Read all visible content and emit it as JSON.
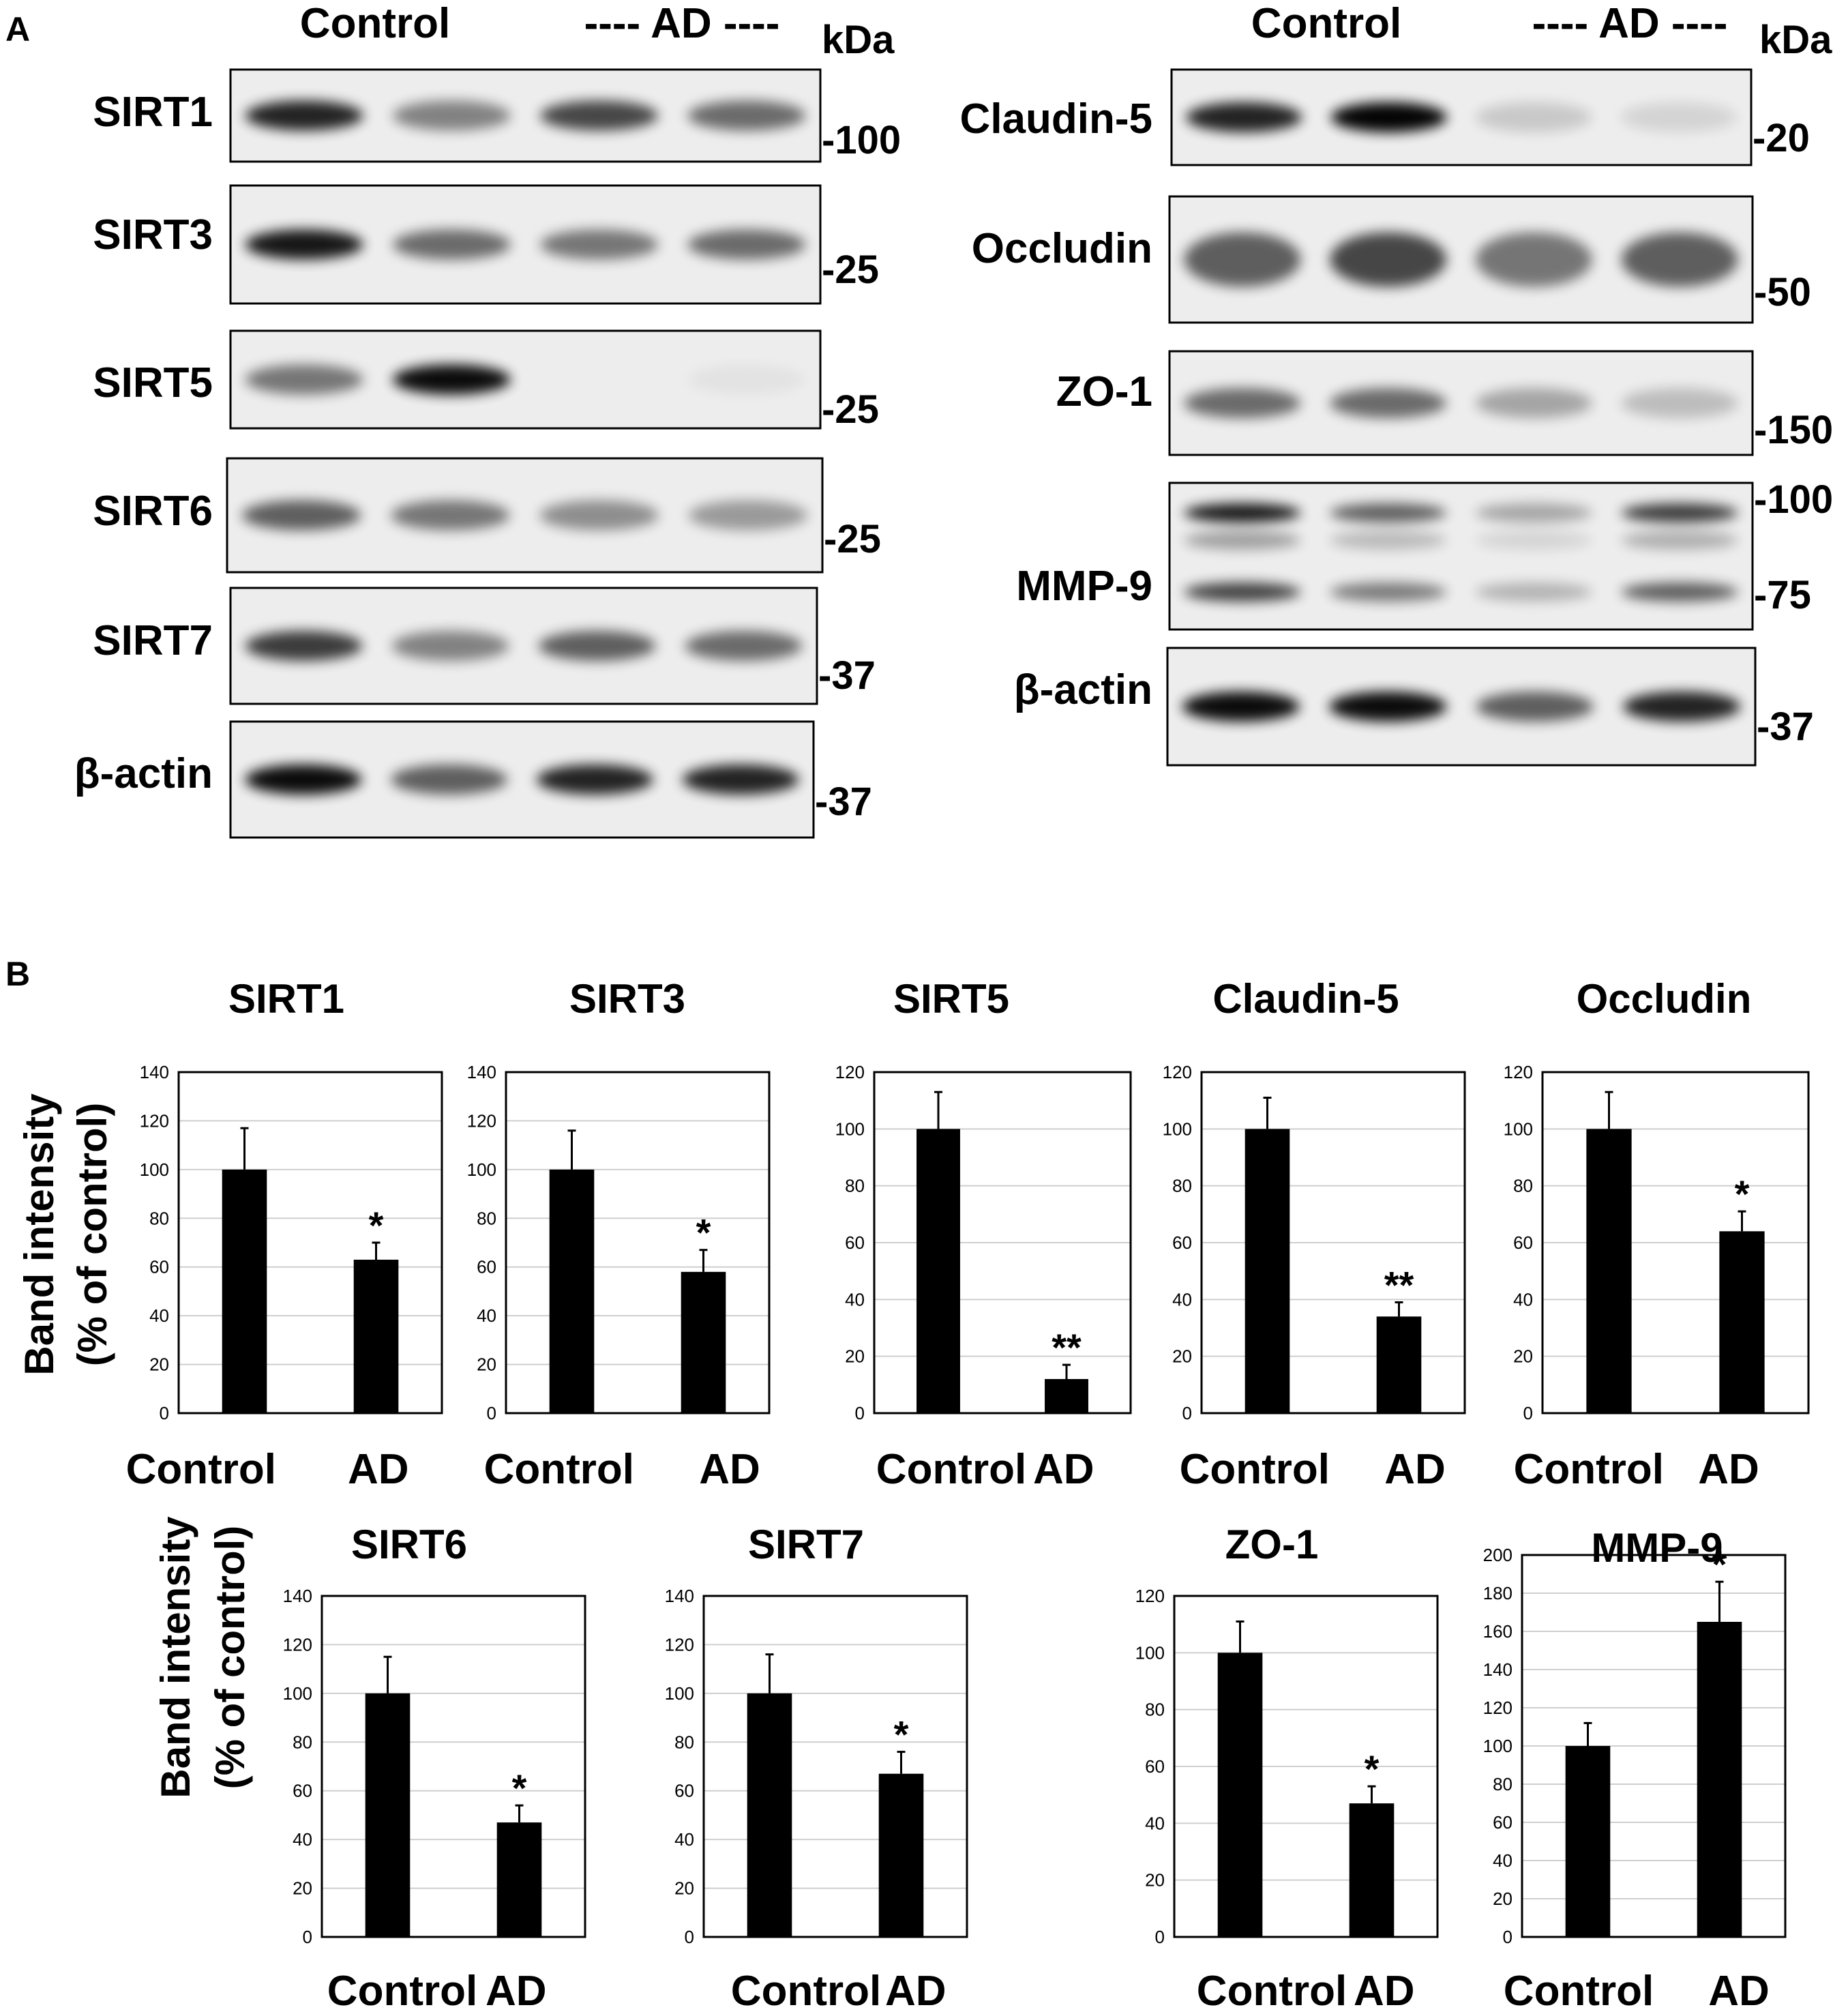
{
  "panel_a": {
    "label": "A",
    "left": {
      "header": {
        "control": "Control",
        "ad": "---- AD ----",
        "unit": "kDa"
      },
      "blots": [
        {
          "protein": "SIRT1",
          "marker": "-100",
          "bands": [
            0.85,
            0.45,
            0.7,
            0.55
          ]
        },
        {
          "protein": "SIRT3",
          "marker": "-25",
          "bands": [
            0.9,
            0.55,
            0.5,
            0.55
          ]
        },
        {
          "protein": "SIRT5",
          "marker": "-25",
          "bands": [
            0.5,
            0.95,
            0.0,
            0.04
          ]
        },
        {
          "protein": "SIRT6",
          "marker": "-25",
          "bands": [
            0.6,
            0.5,
            0.4,
            0.35
          ]
        },
        {
          "protein": "SIRT7",
          "marker": "-37",
          "bands": [
            0.75,
            0.45,
            0.6,
            0.55
          ]
        },
        {
          "protein": "β-actin",
          "marker": "-37",
          "bands": [
            0.95,
            0.6,
            0.85,
            0.85
          ]
        }
      ]
    },
    "right": {
      "header": {
        "control": "Control",
        "ad": "---- AD ----",
        "unit": "kDa"
      },
      "blots": [
        {
          "protein": "Claudin-5",
          "markers": [
            "-20"
          ],
          "bands": [
            0.85,
            0.98,
            0.15,
            0.1
          ]
        },
        {
          "protein": "Occludin",
          "markers": [
            "-50"
          ],
          "bands": [
            0.6,
            0.7,
            0.5,
            0.6
          ]
        },
        {
          "protein": "ZO-1",
          "markers": [
            "-150"
          ],
          "bands": [
            0.55,
            0.55,
            0.3,
            0.2
          ]
        },
        {
          "protein": "MMP-9",
          "markers": [
            "-100",
            "-75"
          ],
          "bands": [
            0.9,
            0.6,
            0.3,
            0.75
          ]
        },
        {
          "protein": "β-actin",
          "markers": [
            "-37"
          ],
          "bands": [
            0.95,
            0.95,
            0.6,
            0.85
          ]
        }
      ]
    }
  },
  "panel_b": {
    "label": "B",
    "ylabel_line1": "Band intensity",
    "ylabel_line2": "(% of control)"
  },
  "chart_data": [
    {
      "type": "bar",
      "title": "SIRT1",
      "categories": [
        "Control",
        "AD"
      ],
      "values": [
        100,
        63
      ],
      "errors": [
        17,
        7
      ],
      "significance": [
        "",
        "*"
      ],
      "ylim": [
        0,
        140
      ],
      "yticks": [
        0,
        20,
        40,
        60,
        80,
        100,
        120,
        140
      ],
      "grid": true
    },
    {
      "type": "bar",
      "title": "SIRT3",
      "categories": [
        "Control",
        "AD"
      ],
      "values": [
        100,
        58
      ],
      "errors": [
        16,
        9
      ],
      "significance": [
        "",
        "*"
      ],
      "ylim": [
        0,
        140
      ],
      "yticks": [
        0,
        20,
        40,
        60,
        80,
        100,
        120,
        140
      ],
      "grid": true
    },
    {
      "type": "bar",
      "title": "SIRT5",
      "categories": [
        "Control",
        "AD"
      ],
      "values": [
        100,
        12
      ],
      "errors": [
        13,
        5
      ],
      "significance": [
        "",
        "**"
      ],
      "ylim": [
        0,
        120
      ],
      "yticks": [
        0,
        20,
        40,
        60,
        80,
        100,
        120
      ],
      "grid": true
    },
    {
      "type": "bar",
      "title": "Claudin-5",
      "categories": [
        "Control",
        "AD"
      ],
      "values": [
        100,
        34
      ],
      "errors": [
        11,
        5
      ],
      "significance": [
        "",
        "**"
      ],
      "ylim": [
        0,
        120
      ],
      "yticks": [
        0,
        20,
        40,
        60,
        80,
        100,
        120
      ],
      "grid": true
    },
    {
      "type": "bar",
      "title": "Occludin",
      "categories": [
        "Control",
        "AD"
      ],
      "values": [
        100,
        64
      ],
      "errors": [
        13,
        7
      ],
      "significance": [
        "",
        "*"
      ],
      "ylim": [
        0,
        120
      ],
      "yticks": [
        0,
        20,
        40,
        60,
        80,
        100,
        120
      ],
      "grid": true
    },
    {
      "type": "bar",
      "title": "SIRT6",
      "categories": [
        "Control",
        "AD"
      ],
      "values": [
        100,
        47
      ],
      "errors": [
        15,
        7
      ],
      "significance": [
        "",
        "*"
      ],
      "ylim": [
        0,
        140
      ],
      "yticks": [
        0,
        20,
        40,
        60,
        80,
        100,
        120,
        140
      ],
      "grid": true
    },
    {
      "type": "bar",
      "title": "SIRT7",
      "categories": [
        "Control",
        "AD"
      ],
      "values": [
        100,
        67
      ],
      "errors": [
        16,
        9
      ],
      "significance": [
        "",
        "*"
      ],
      "ylim": [
        0,
        140
      ],
      "yticks": [
        0,
        20,
        40,
        60,
        80,
        100,
        120,
        140
      ],
      "grid": true
    },
    {
      "type": "bar",
      "title": "ZO-1",
      "categories": [
        "Control",
        "AD"
      ],
      "values": [
        100,
        47
      ],
      "errors": [
        11,
        6
      ],
      "significance": [
        "",
        "*"
      ],
      "ylim": [
        0,
        120
      ],
      "yticks": [
        0,
        20,
        40,
        60,
        80,
        100,
        120
      ],
      "grid": true
    },
    {
      "type": "bar",
      "title": "MMP-9",
      "categories": [
        "Control",
        "AD"
      ],
      "values": [
        100,
        165
      ],
      "errors": [
        12,
        21
      ],
      "significance": [
        "",
        "*"
      ],
      "ylim": [
        0,
        200
      ],
      "yticks": [
        0,
        20,
        40,
        60,
        80,
        100,
        120,
        140,
        160,
        180,
        200
      ],
      "grid": true
    }
  ]
}
